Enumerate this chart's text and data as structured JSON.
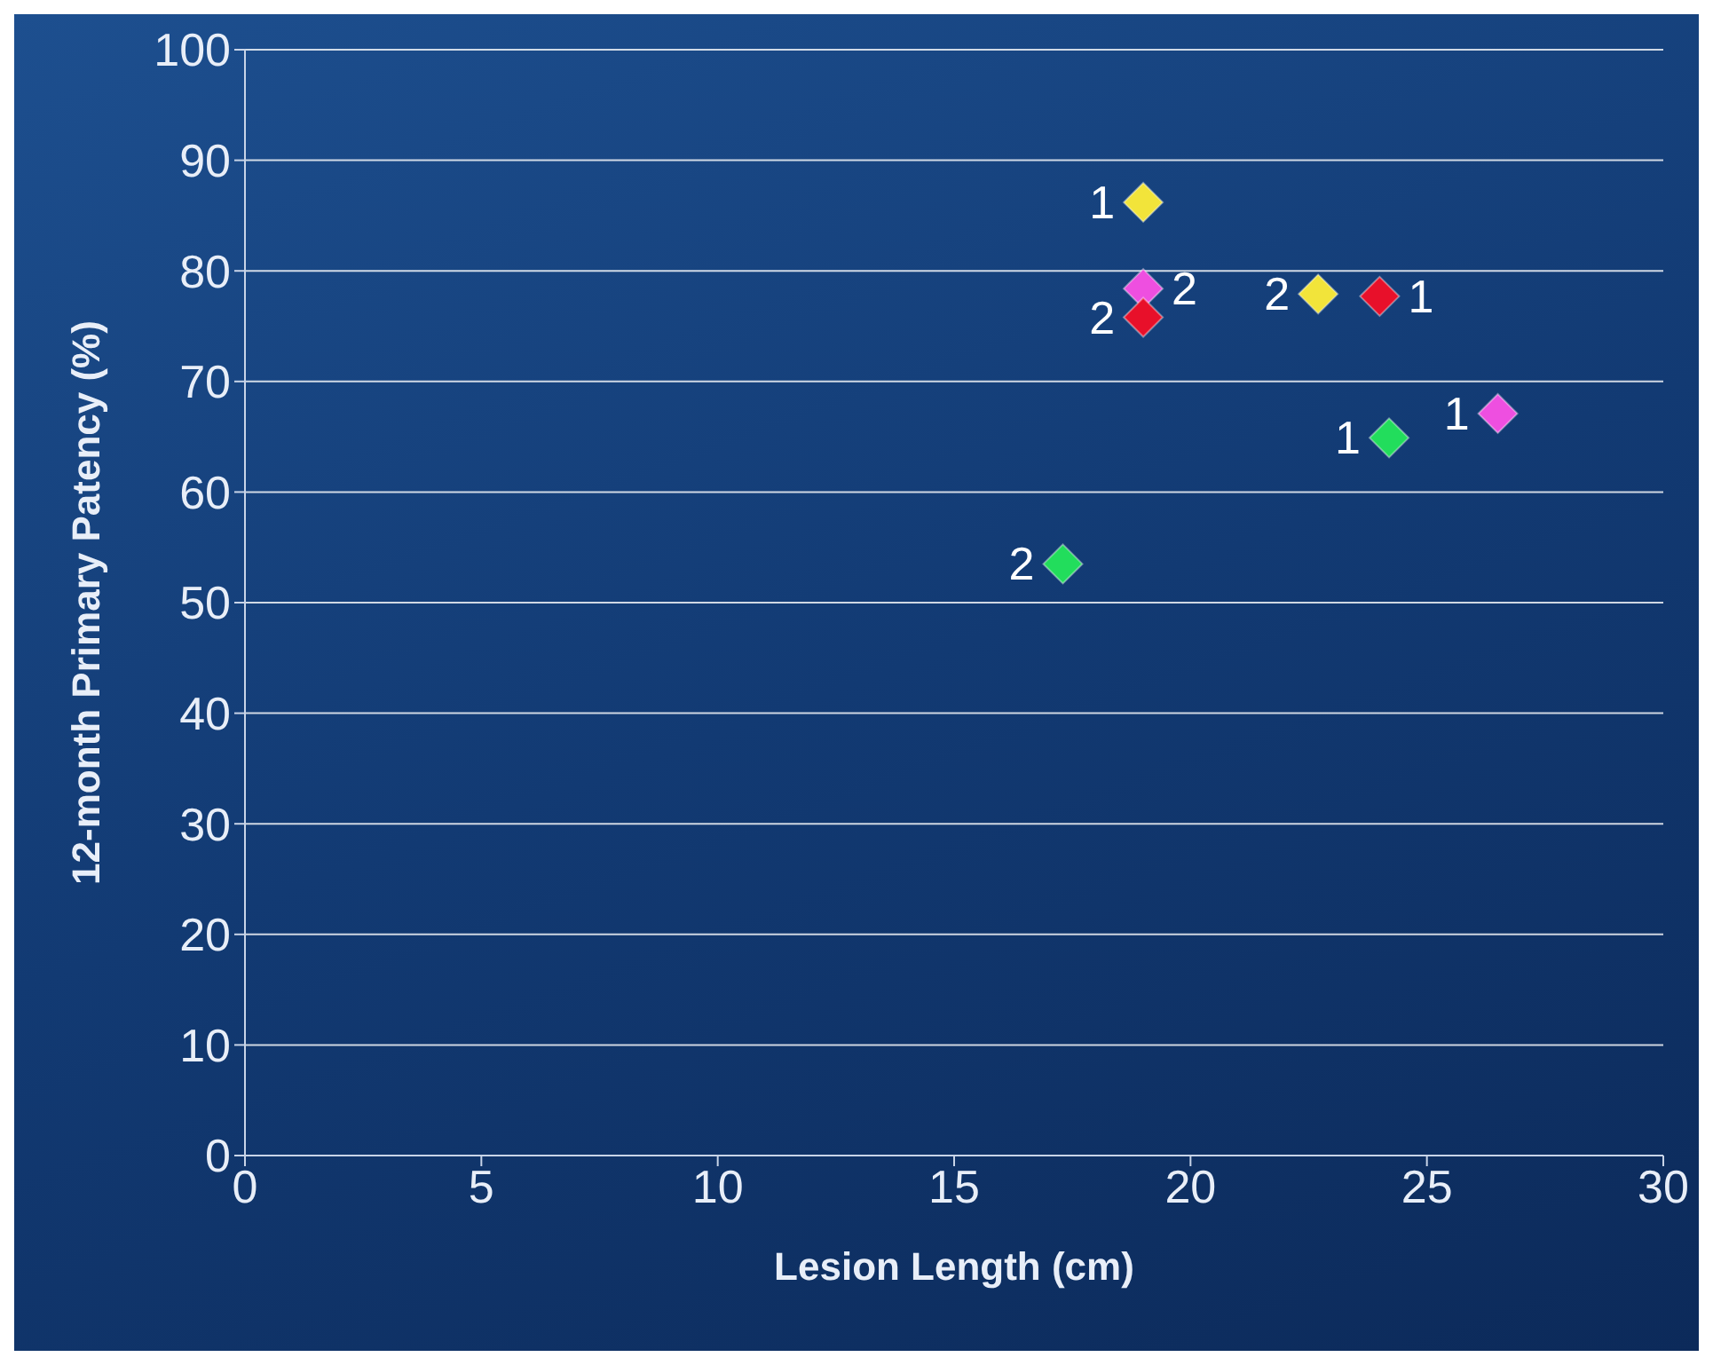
{
  "chart_data": {
    "type": "scatter",
    "xlabel": "Lesion Length (cm)",
    "ylabel": "12-month Primary Patency (%)",
    "xlim": [
      0,
      30
    ],
    "xticks": [
      0,
      5,
      10,
      15,
      20,
      25,
      30
    ],
    "ylim": [
      0,
      100
    ],
    "yticks": [
      0,
      10,
      20,
      30,
      40,
      50,
      60,
      70,
      80,
      90,
      100
    ],
    "grid": "y",
    "marker": "diamond",
    "series": [
      {
        "color": "#f2e43a",
        "x": [
          19,
          22.7
        ],
        "values": [
          86.2,
          77.9
        ]
      },
      {
        "color": "#ee4fe0",
        "x": [
          26.5,
          19
        ],
        "values": [
          67.1,
          78.4
        ]
      },
      {
        "color": "#e8102a",
        "x": [
          24,
          19
        ],
        "values": [
          77.7,
          75.8
        ]
      },
      {
        "color": "#22dd5c",
        "x": [
          24.2,
          17.3
        ],
        "values": [
          64.9,
          53.5
        ]
      }
    ],
    "annotations": [
      {
        "text": "1",
        "x": 19,
        "y": 86.2
      },
      {
        "text": "2",
        "x": 19,
        "y": 75.8
      },
      {
        "text": "2",
        "x": 19,
        "y": 78.4
      },
      {
        "text": "2",
        "x": 22.7,
        "y": 77.9
      },
      {
        "text": "1",
        "x": 24,
        "y": 77.7
      },
      {
        "text": "1",
        "x": 26.5,
        "y": 67.1
      },
      {
        "text": "1",
        "x": 24.2,
        "y": 64.9
      },
      {
        "text": "2",
        "x": 17.3,
        "y": 53.5
      }
    ]
  }
}
